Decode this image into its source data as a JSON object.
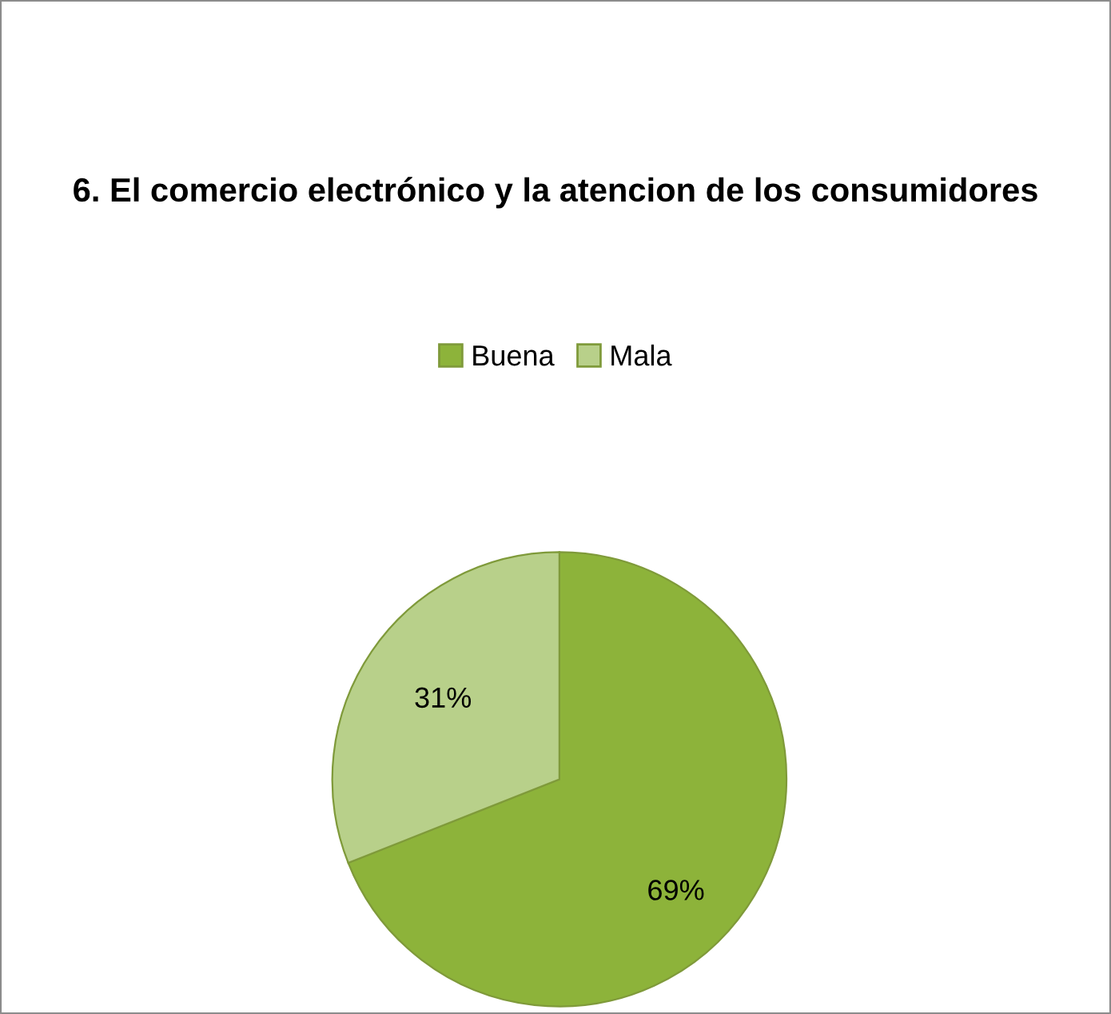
{
  "chart_data": {
    "type": "pie",
    "title": "6. El comercio electrónico y la atencion de los consumidores",
    "categories": [
      "Buena",
      "Mala"
    ],
    "values": [
      69,
      31
    ],
    "colors": [
      "#8db33a",
      "#b8d08a"
    ],
    "value_labels": [
      "69%",
      "31%"
    ],
    "legend": "top"
  }
}
